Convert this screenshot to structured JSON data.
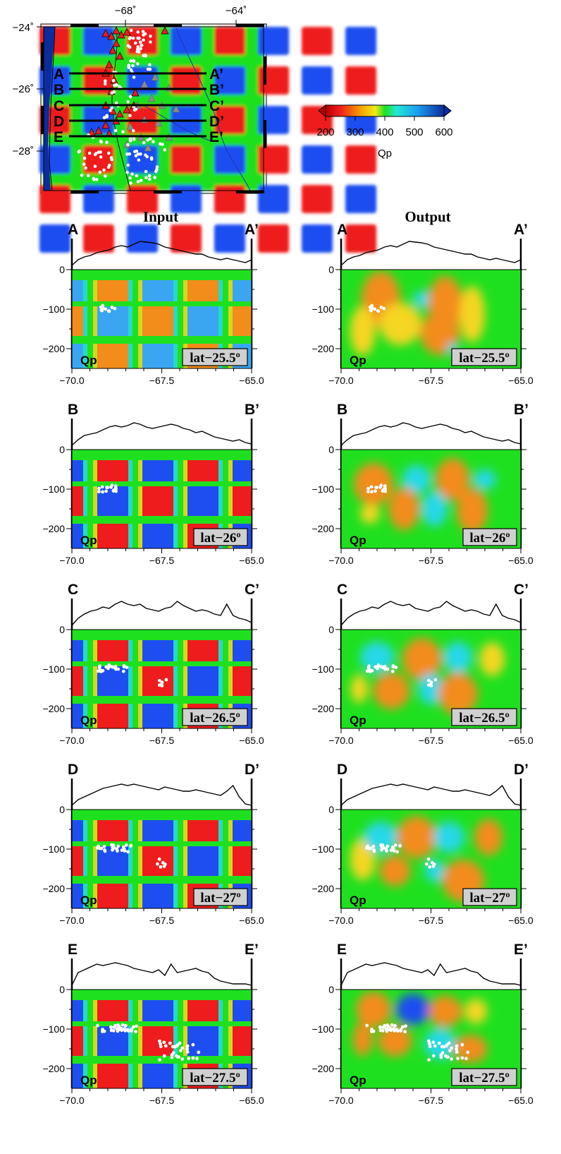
{
  "map": {
    "lon_labels": [
      "−68˚",
      "−64˚"
    ],
    "lat_labels": [
      "−24˚",
      "−26˚",
      "−28˚"
    ],
    "profile_lines": [
      {
        "start": "A",
        "end": "A’"
      },
      {
        "start": "B",
        "end": "B’"
      },
      {
        "start": "C",
        "end": "C’"
      },
      {
        "start": "D",
        "end": "D’"
      },
      {
        "start": "E",
        "end": "E’"
      }
    ]
  },
  "colorbar": {
    "label": "Qp",
    "ticks": [
      "200",
      "300",
      "400",
      "500",
      "600"
    ],
    "range": [
      200,
      600
    ]
  },
  "columns": [
    {
      "title": "Input",
      "type": "checkerboard"
    },
    {
      "title": "Output",
      "type": "recovered"
    }
  ],
  "sections": [
    {
      "start": "A",
      "end": "A’",
      "lat_label": "lat−25.5º",
      "qp_label": "Qp"
    },
    {
      "start": "B",
      "end": "B’",
      "lat_label": "lat−26º",
      "qp_label": "Qp"
    },
    {
      "start": "C",
      "end": "C’",
      "lat_label": "lat−26.5º",
      "qp_label": "Qp"
    },
    {
      "start": "D",
      "end": "D’",
      "lat_label": "lat−27º",
      "qp_label": "Qp"
    },
    {
      "start": "E",
      "end": "E’",
      "lat_label": "lat−27.5º",
      "qp_label": "Qp"
    }
  ],
  "axes": {
    "x_ticks": [
      "−70.0",
      "−67.5",
      "−65.0"
    ],
    "y_ticks": [
      "0",
      "−100",
      "−200"
    ]
  },
  "colors": {
    "red": "#ee1c1c",
    "orange": "#f28c1a",
    "yellow": "#f5d620",
    "green": "#1fe01f",
    "cyan": "#27d8e8",
    "blue": "#1e4ef0",
    "deep_blue": "#0b2c9c",
    "outline": "#000000"
  }
}
